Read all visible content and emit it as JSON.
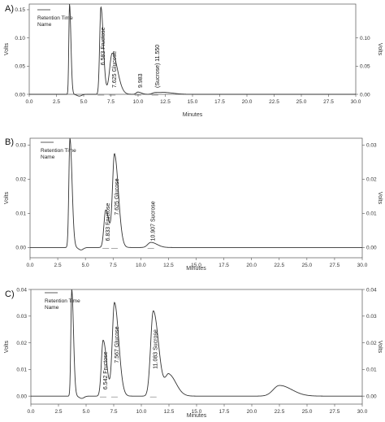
{
  "chart_data": [
    {
      "panel_label": "A)",
      "type": "line",
      "legend": {
        "title": "Retention Time",
        "subtitle": "Name",
        "position": "top-left"
      },
      "xlabel": "Minutes",
      "ylabel": "Volts",
      "xlim": [
        0,
        30
      ],
      "ylim": [
        0,
        0.16
      ],
      "x_ticks": [
        "0.0",
        "2.5",
        "5.0",
        "7.5",
        "10.0",
        "12.5",
        "15.0",
        "17.5",
        "20.0",
        "22.5",
        "25.0",
        "27.5",
        "30.0"
      ],
      "y_ticks_left": [
        "0.00",
        "0.05",
        "0.10",
        "0.15"
      ],
      "y_ticks_right": [
        "0.00",
        "0.05",
        "0.10"
      ],
      "peaks": [
        {
          "rt": 3.7,
          "height": 0.16,
          "width": 0.08,
          "label": ""
        },
        {
          "rt": 6.583,
          "height": 0.155,
          "width": 0.14,
          "label": "6.583 Fructose"
        },
        {
          "rt": 7.625,
          "height": 0.073,
          "width": 0.3,
          "label": "7.625 Glucose"
        },
        {
          "rt": 9.983,
          "height": 0.004,
          "width": 0.2,
          "label": "9.983"
        },
        {
          "rt": 11.55,
          "height": 0.003,
          "width": 0.3,
          "label": "(Sucrose) 11.550"
        },
        {
          "rt": 12.5,
          "height": 0.003,
          "width": 0.5,
          "label": ""
        }
      ],
      "baseline": 0.0
    },
    {
      "panel_label": "B)",
      "type": "line",
      "legend": {
        "title": "Retention Time",
        "subtitle": "Name",
        "position": "top-left"
      },
      "xlabel": "Minutes",
      "ylabel": "Volts",
      "xlim": [
        0,
        30
      ],
      "ylim": [
        -0.003,
        0.032
      ],
      "x_ticks": [
        "0.0",
        "2.5",
        "5.0",
        "7.5",
        "10.0",
        "12.5",
        "15.0",
        "17.5",
        "20.0",
        "22.5",
        "25.0",
        "27.5",
        "30.0"
      ],
      "y_ticks_left": [
        "0.00",
        "0.01",
        "0.02",
        "0.03"
      ],
      "y_ticks_right": [
        "0.00",
        "0.01",
        "0.02",
        "0.03"
      ],
      "peaks": [
        {
          "rt": 3.6,
          "height": 0.032,
          "width": 0.12,
          "label": ""
        },
        {
          "rt": 6.833,
          "height": 0.011,
          "width": 0.2,
          "label": "6.833 Fructose"
        },
        {
          "rt": 7.625,
          "height": 0.027,
          "width": 0.22,
          "label": "7.625 Glucose"
        },
        {
          "rt": 10.907,
          "height": 0.0015,
          "width": 0.35,
          "label": "10.907 Sucrose"
        }
      ],
      "baseline": 0.0
    },
    {
      "panel_label": "C)",
      "type": "line",
      "legend": {
        "title": "Retention Time",
        "subtitle": "Name",
        "position": "top-left"
      },
      "xlabel": "Minutes",
      "ylabel": "Volts",
      "xlim": [
        0,
        30
      ],
      "ylim": [
        -0.003,
        0.04
      ],
      "x_ticks": [
        "0.0",
        "2.5",
        "5.0",
        "7.5",
        "10.0",
        "12.5",
        "15.0",
        "17.5",
        "20.0",
        "22.5",
        "25.0",
        "27.5",
        "30.0"
      ],
      "y_ticks_left": [
        "0.00",
        "0.01",
        "0.02",
        "0.03",
        "0.04"
      ],
      "y_ticks_right": [
        "0.00",
        "0.01",
        "0.02",
        "0.03",
        "0.04"
      ],
      "peaks": [
        {
          "rt": 3.7,
          "height": 0.04,
          "width": 0.1,
          "label": ""
        },
        {
          "rt": 6.542,
          "height": 0.021,
          "width": 0.2,
          "label": "6.542 Fructose"
        },
        {
          "rt": 7.567,
          "height": 0.035,
          "width": 0.24,
          "label": "7.567 Glucose"
        },
        {
          "rt": 11.083,
          "height": 0.032,
          "width": 0.3,
          "label": "11.083 Sucrose"
        },
        {
          "rt": 12.5,
          "height": 0.008,
          "width": 0.4,
          "label": ""
        },
        {
          "rt": 22.5,
          "height": 0.004,
          "width": 0.7,
          "label": ""
        }
      ],
      "baseline": 0.0
    }
  ]
}
